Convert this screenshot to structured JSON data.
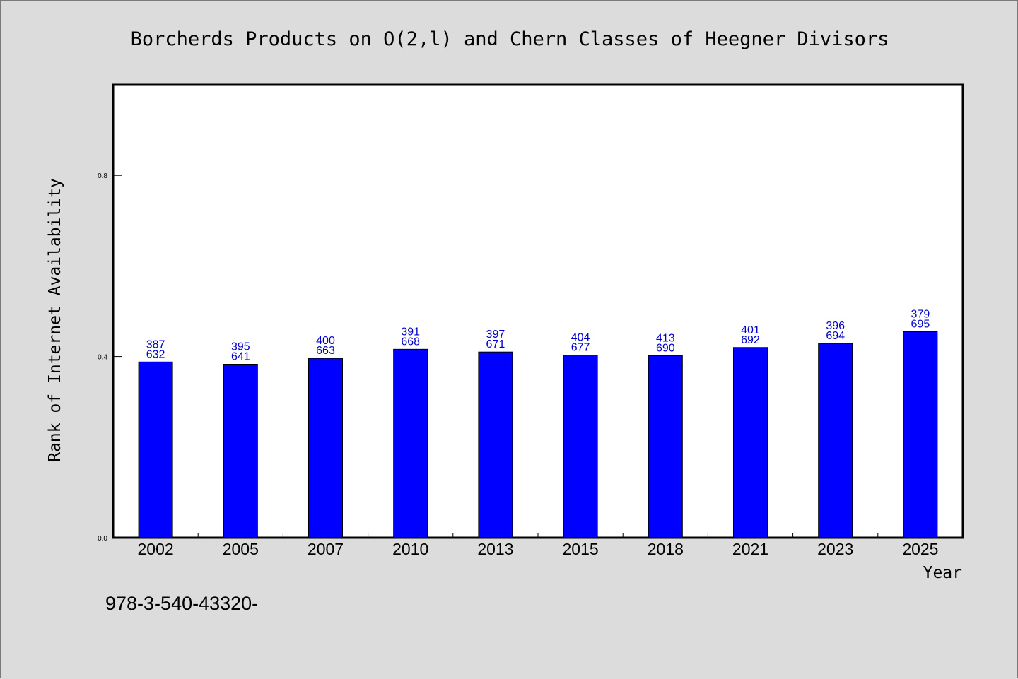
{
  "chart_data": {
    "type": "bar",
    "title": "Borcherds Products on O(2,l) and Chern Classes of Heegner Divisors",
    "xlabel": "Year",
    "ylabel": "Rank of Internet Availability",
    "categories": [
      "2002",
      "2005",
      "2007",
      "2010",
      "2013",
      "2015",
      "2018",
      "2021",
      "2023",
      "2025"
    ],
    "values": [
      0.388,
      0.383,
      0.396,
      0.416,
      0.41,
      0.403,
      0.402,
      0.42,
      0.429,
      0.455
    ],
    "label_top": [
      "387",
      "395",
      "400",
      "391",
      "397",
      "404",
      "413",
      "401",
      "396",
      "379"
    ],
    "label_bottom": [
      "632",
      "641",
      "663",
      "668",
      "671",
      "677",
      "690",
      "692",
      "694",
      "695"
    ],
    "ylim": [
      0,
      1.0
    ],
    "yticks": [
      0.0,
      0.4,
      0.8
    ],
    "ytick_labels": [
      "0.0",
      "0.4",
      "0.8"
    ],
    "grid": false,
    "bar_color": "#0000ff",
    "label_color": "#0000cc",
    "background_color": "#dcdcdc",
    "footer_text": "978-3-540-43320-"
  }
}
